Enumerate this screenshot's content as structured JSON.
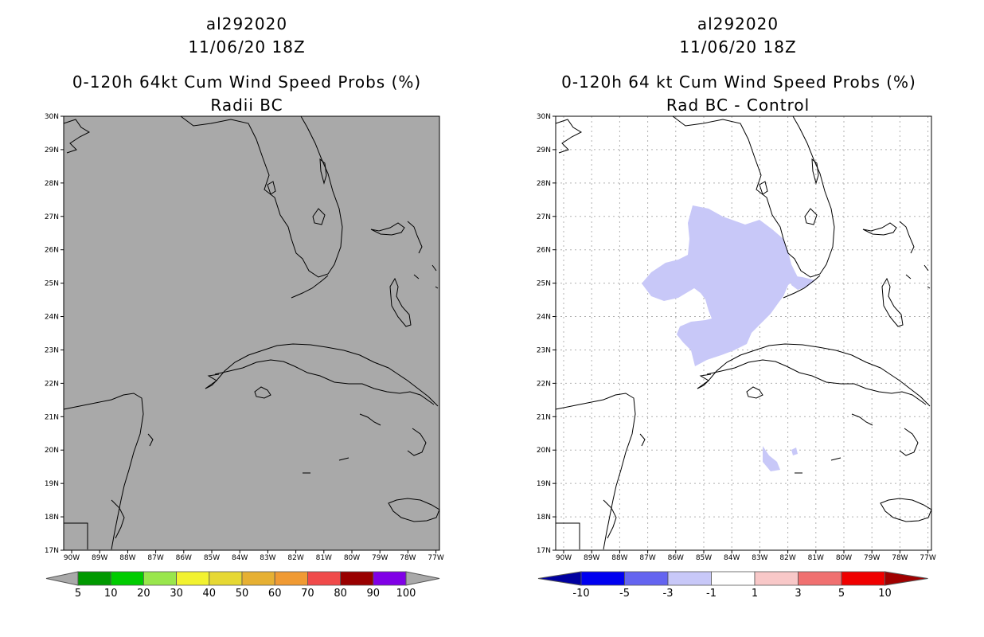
{
  "left_panel": {
    "title_lines": [
      "al292020",
      "11/06/20 18Z",
      "0-120h 64kt Cum Wind Speed Probs (%)",
      "Radii BC"
    ],
    "background_fill": "#a9a9a9",
    "colorbar": {
      "colors": [
        "#009900",
        "#00cc00",
        "#99e64c",
        "#f2f230",
        "#e6d833",
        "#e6b033",
        "#f09a33",
        "#f04a4a",
        "#990000",
        "#8000e6"
      ],
      "labels": [
        "5",
        "10",
        "20",
        "30",
        "40",
        "50",
        "60",
        "70",
        "80",
        "90",
        "100"
      ]
    }
  },
  "right_panel": {
    "title_lines": [
      "al292020",
      "11/06/20 18Z",
      "0-120h 64 kt Cum Wind Speed Probs (%)",
      "Rad BC - Control"
    ],
    "shade_color": "#c8c8f8",
    "colorbar": {
      "colors": [
        "#0000a0",
        "#0000f0",
        "#6464f0",
        "#c8c8f8",
        "#ffffff",
        "#f8c8c8",
        "#f07070",
        "#f00000",
        "#a00000"
      ],
      "labels": [
        "-10",
        "-5",
        "-3",
        "-1",
        "1",
        "3",
        "5",
        "10"
      ]
    }
  },
  "axes": {
    "lat_labels": [
      "30N",
      "29N",
      "28N",
      "27N",
      "26N",
      "25N",
      "24N",
      "23N",
      "22N",
      "21N",
      "20N",
      "19N",
      "18N",
      "17N"
    ],
    "lon_labels": [
      "90W",
      "89W",
      "88W",
      "87W",
      "86W",
      "85W",
      "84W",
      "83W",
      "82W",
      "81W",
      "80W",
      "79W",
      "78W",
      "77W"
    ]
  }
}
